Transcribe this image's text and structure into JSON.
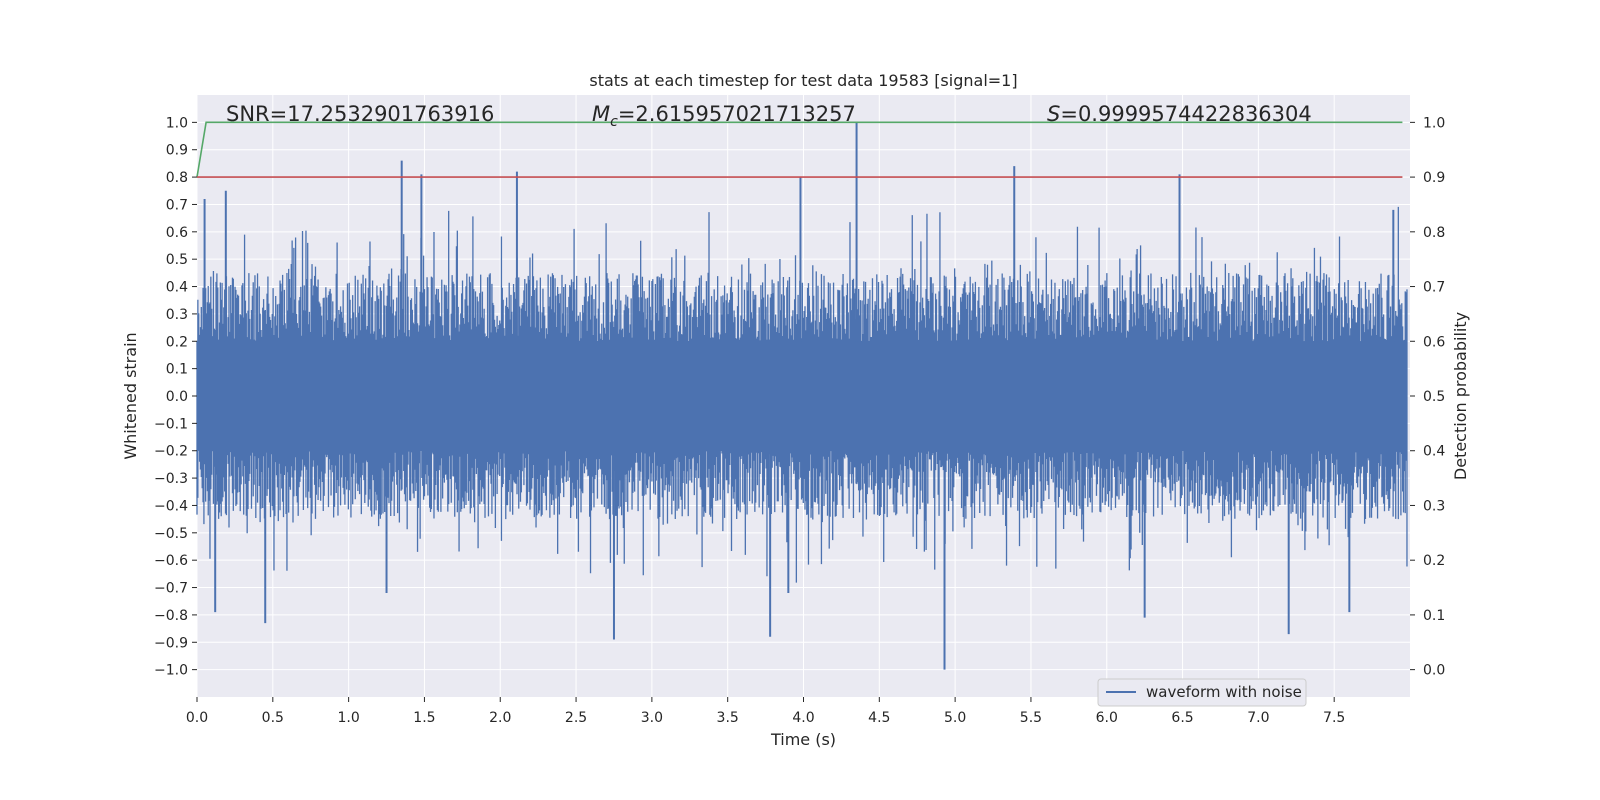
{
  "chart_data": {
    "type": "line",
    "title": "stats at each timestep for test data 19583 [signal=1]",
    "xlabel": "Time (s)",
    "ylabel": "Whitened strain",
    "y2label": "Detection probability",
    "xlim": [
      0.0,
      8.0
    ],
    "ylim": [
      -1.1,
      1.1
    ],
    "y2lim": [
      -0.05,
      1.05
    ],
    "x_ticks": [
      "0.0",
      "0.5",
      "1.0",
      "1.5",
      "2.0",
      "2.5",
      "3.0",
      "3.5",
      "4.0",
      "4.5",
      "5.0",
      "5.5",
      "6.0",
      "6.5",
      "7.0",
      "7.5"
    ],
    "y_ticks": [
      "−1.0",
      "−0.9",
      "−0.8",
      "−0.7",
      "−0.6",
      "−0.5",
      "−0.4",
      "−0.3",
      "−0.2",
      "−0.1",
      "0.0",
      "0.1",
      "0.2",
      "0.3",
      "0.4",
      "0.5",
      "0.6",
      "0.7",
      "0.8",
      "0.9",
      "1.0"
    ],
    "y2_ticks": [
      "0.0",
      "0.1",
      "0.2",
      "0.3",
      "0.4",
      "0.5",
      "0.6",
      "0.7",
      "0.8",
      "0.9",
      "1.0"
    ],
    "grid": true,
    "legend": {
      "position": "lower-right",
      "entries": [
        "waveform with noise"
      ]
    },
    "annotations": {
      "snr": "SNR=17.2532901763916",
      "mc_symbol": "M",
      "mc_sub": "c",
      "mc_value": "=2.615957021713257",
      "s_symbol": "S",
      "s_value": "=0.9999574422836304"
    },
    "series": [
      {
        "name": "waveform with noise",
        "axis": "left",
        "color": "#4c72b0",
        "description": "dense noisy strain, approx. symmetric about 0",
        "peaks_high": [
          {
            "x": 0.05,
            "y": 0.72
          },
          {
            "x": 0.19,
            "y": 0.75
          },
          {
            "x": 1.35,
            "y": 0.86
          },
          {
            "x": 1.48,
            "y": 0.81
          },
          {
            "x": 2.11,
            "y": 0.82
          },
          {
            "x": 3.98,
            "y": 0.8
          },
          {
            "x": 4.35,
            "y": 1.0
          },
          {
            "x": 5.39,
            "y": 0.84
          },
          {
            "x": 6.48,
            "y": 0.81
          },
          {
            "x": 7.89,
            "y": 0.68
          }
        ],
        "peaks_low": [
          {
            "x": 0.12,
            "y": -0.79
          },
          {
            "x": 0.45,
            "y": -0.83
          },
          {
            "x": 1.25,
            "y": -0.72
          },
          {
            "x": 2.75,
            "y": -0.89
          },
          {
            "x": 3.78,
            "y": -0.88
          },
          {
            "x": 3.9,
            "y": -0.72
          },
          {
            "x": 4.93,
            "y": -1.0
          },
          {
            "x": 6.25,
            "y": -0.81
          },
          {
            "x": 7.2,
            "y": -0.87
          },
          {
            "x": 7.6,
            "y": -0.79
          }
        ]
      },
      {
        "name": "",
        "axis": "right",
        "color": "#55a868",
        "x": [
          0.0,
          0.03,
          0.06,
          7.95
        ],
        "values": [
          0.9,
          0.95,
          1.0,
          1.0
        ]
      },
      {
        "name": "",
        "axis": "right",
        "color": "#c44e52",
        "x": [
          0.0,
          7.95
        ],
        "values": [
          0.9,
          0.9
        ]
      }
    ],
    "colors": {
      "plot_bg": "#eaeaf2",
      "grid": "#ffffff",
      "text": "#262626"
    }
  }
}
